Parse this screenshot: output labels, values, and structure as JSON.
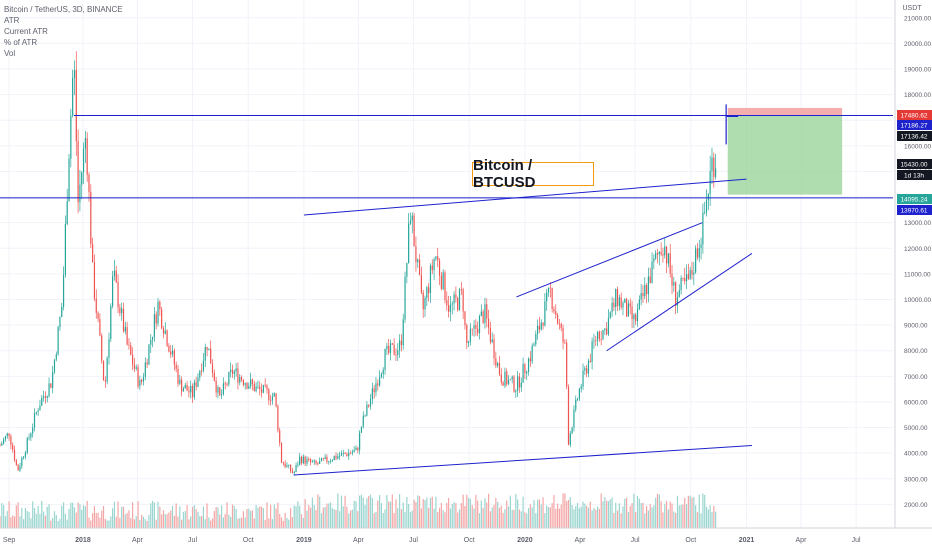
{
  "header": {
    "title": "Bitcoin / TetherUS, 3D, BINANCE",
    "indicators": [
      "ATR",
      "Current ATR",
      "% of ATR",
      "Vol"
    ]
  },
  "annotation": {
    "label": "Bitcoin / BTCUSD"
  },
  "price_scale": {
    "currency": "USDT",
    "tags": [
      {
        "value": "17480.62",
        "color": "#e53935"
      },
      {
        "value": "17186.27",
        "color": "#1e22cc"
      },
      {
        "value": "17136.42",
        "color": "#131722"
      },
      {
        "value": "15430.00",
        "color": "#131722"
      },
      {
        "value": "1d 13h",
        "color": "#131722"
      },
      {
        "value": "14095.24",
        "color": "#26a69a"
      },
      {
        "value": "13970.61",
        "color": "#1e22cc"
      }
    ]
  },
  "colors": {
    "up": "#26a69a",
    "down": "#ef5350",
    "vol_up": "#9ad5cf",
    "vol_down": "#f4a6a6",
    "trendline": "#1e22cc",
    "target": "#8fcf8f",
    "stop": "#f2a0a0"
  },
  "chart_data": {
    "type": "candlestick",
    "title": "Bitcoin / TetherUS, 3D, BINANCE",
    "ylabel": "USDT",
    "ylim": [
      1000,
      21500
    ],
    "yticks": [
      2000,
      3000,
      4000,
      5000,
      6000,
      7000,
      8000,
      9000,
      10000,
      11000,
      12000,
      13000,
      14000,
      15000,
      16000,
      17000,
      18000,
      19000,
      20000,
      21000
    ],
    "ytick_labels": [
      "2000.00",
      "3000.00",
      "4000.00",
      "5000.00",
      "6000.00",
      "7000.00",
      "8000.00",
      "9000.00",
      "10000.00",
      "11000.00",
      "12000.00",
      "13000.00",
      "14000.00",
      "15000.00",
      "16000.00",
      "17000.00",
      "18000.00",
      "19000.00",
      "20000.00",
      "21000.00"
    ],
    "xlim": [
      "2017-08-17",
      "2021-08-31"
    ],
    "xticks": [
      {
        "date": "2017-09-01",
        "label": "Sep"
      },
      {
        "date": "2018-01-01",
        "label": "2018"
      },
      {
        "date": "2018-04-01",
        "label": "Apr"
      },
      {
        "date": "2018-07-01",
        "label": "Jul"
      },
      {
        "date": "2018-10-01",
        "label": "Oct"
      },
      {
        "date": "2019-01-01",
        "label": "2019"
      },
      {
        "date": "2019-04-01",
        "label": "Apr"
      },
      {
        "date": "2019-07-01",
        "label": "Jul"
      },
      {
        "date": "2019-10-01",
        "label": "Oct"
      },
      {
        "date": "2020-01-01",
        "label": "2020"
      },
      {
        "date": "2020-04-01",
        "label": "Apr"
      },
      {
        "date": "2020-07-01",
        "label": "Jul"
      },
      {
        "date": "2020-10-01",
        "label": "Oct"
      },
      {
        "date": "2021-01-01",
        "label": "2021"
      },
      {
        "date": "2021-04-01",
        "label": "Apr"
      },
      {
        "date": "2021-07-01",
        "label": "Jul"
      }
    ],
    "price_path": [
      {
        "date": "2017-08-17",
        "close": 4300
      },
      {
        "date": "2017-09-01",
        "close": 4800
      },
      {
        "date": "2017-09-15",
        "close": 3300
      },
      {
        "date": "2017-10-01",
        "close": 4400
      },
      {
        "date": "2017-10-20",
        "close": 5900
      },
      {
        "date": "2017-11-10",
        "close": 6800
      },
      {
        "date": "2017-11-28",
        "close": 9900
      },
      {
        "date": "2017-12-08",
        "close": 15500
      },
      {
        "date": "2017-12-17",
        "close": 19500
      },
      {
        "date": "2017-12-24",
        "close": 13800
      },
      {
        "date": "2018-01-06",
        "close": 16500
      },
      {
        "date": "2018-01-17",
        "close": 11000
      },
      {
        "date": "2018-02-06",
        "close": 6500
      },
      {
        "date": "2018-02-20",
        "close": 11000
      },
      {
        "date": "2018-03-15",
        "close": 8200
      },
      {
        "date": "2018-04-06",
        "close": 6600
      },
      {
        "date": "2018-05-05",
        "close": 9800
      },
      {
        "date": "2018-06-10",
        "close": 6700
      },
      {
        "date": "2018-07-01",
        "close": 6300
      },
      {
        "date": "2018-07-25",
        "close": 8300
      },
      {
        "date": "2018-08-14",
        "close": 6100
      },
      {
        "date": "2018-09-05",
        "close": 7200
      },
      {
        "date": "2018-10-15",
        "close": 6500
      },
      {
        "date": "2018-11-14",
        "close": 6200
      },
      {
        "date": "2018-11-25",
        "close": 3700
      },
      {
        "date": "2018-12-15",
        "close": 3200
      },
      {
        "date": "2018-12-25",
        "close": 3800
      },
      {
        "date": "2019-01-20",
        "close": 3550
      },
      {
        "date": "2019-02-20",
        "close": 3850
      },
      {
        "date": "2019-03-30",
        "close": 4100
      },
      {
        "date": "2019-04-05",
        "close": 5000
      },
      {
        "date": "2019-05-15",
        "close": 7800
      },
      {
        "date": "2019-06-10",
        "close": 8200
      },
      {
        "date": "2019-06-26",
        "close": 13500
      },
      {
        "date": "2019-07-16",
        "close": 9500
      },
      {
        "date": "2019-08-06",
        "close": 11800
      },
      {
        "date": "2019-08-30",
        "close": 9600
      },
      {
        "date": "2019-09-20",
        "close": 10200
      },
      {
        "date": "2019-09-26",
        "close": 8200
      },
      {
        "date": "2019-10-26",
        "close": 9500
      },
      {
        "date": "2019-11-22",
        "close": 7000
      },
      {
        "date": "2019-12-18",
        "close": 6600
      },
      {
        "date": "2020-01-10",
        "close": 7800
      },
      {
        "date": "2020-02-12",
        "close": 10300
      },
      {
        "date": "2020-03-08",
        "close": 8000
      },
      {
        "date": "2020-03-13",
        "close": 4500
      },
      {
        "date": "2020-03-30",
        "close": 6400
      },
      {
        "date": "2020-04-30",
        "close": 8700
      },
      {
        "date": "2020-05-12",
        "close": 8800
      },
      {
        "date": "2020-06-01",
        "close": 10100
      },
      {
        "date": "2020-06-30",
        "close": 9100
      },
      {
        "date": "2020-07-28",
        "close": 11100
      },
      {
        "date": "2020-08-17",
        "close": 12300
      },
      {
        "date": "2020-09-05",
        "close": 10100
      },
      {
        "date": "2020-09-30",
        "close": 10800
      },
      {
        "date": "2020-10-21",
        "close": 12900
      },
      {
        "date": "2020-11-06",
        "close": 15500
      },
      {
        "date": "2020-11-13",
        "close": 15430
      }
    ],
    "volume_ylim": [
      0,
      30000
    ],
    "trendlines": [
      {
        "name": "",
        "points": [
          {
            "date": "2017-12-17",
            "price": 17186.27
          },
          {
            "date": "2021-08-31",
            "price": 17186.27
          }
        ]
      },
      {
        "name": "",
        "points": [
          {
            "date": "2017-08-17",
            "price": 13970.61
          },
          {
            "date": "2021-08-31",
            "price": 13970.61
          }
        ]
      },
      {
        "name": "",
        "points": [
          {
            "date": "2019-01-01",
            "price": 13300
          },
          {
            "date": "2021-01-01",
            "price": 14700
          }
        ]
      },
      {
        "name": "",
        "points": [
          {
            "date": "2019-12-18",
            "price": 10100
          },
          {
            "date": "2020-10-20",
            "price": 13000
          }
        ]
      },
      {
        "name": "",
        "points": [
          {
            "date": "2020-05-15",
            "price": 8000
          },
          {
            "date": "2021-01-10",
            "price": 11800
          }
        ]
      },
      {
        "name": "",
        "points": [
          {
            "date": "2018-12-15",
            "price": 3150
          },
          {
            "date": "2021-01-10",
            "price": 4300
          }
        ]
      }
    ],
    "position": {
      "start": "2020-12-01",
      "end": "2021-06-08",
      "stop": 17480.62,
      "entry": 17186.27,
      "target": 14095.24
    },
    "forecast_marker": {
      "date": "2020-12-05",
      "price": 17150
    }
  }
}
